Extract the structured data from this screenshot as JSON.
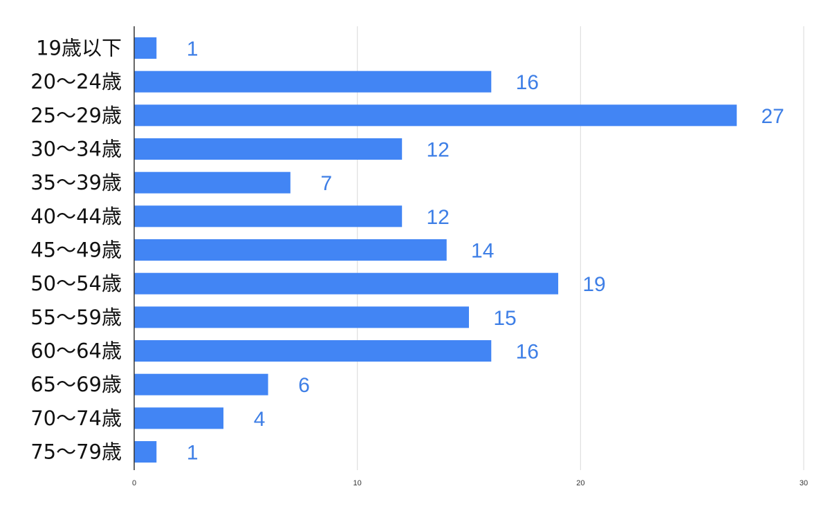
{
  "chart_data": {
    "type": "bar",
    "orientation": "horizontal",
    "categories": [
      "19歳以下",
      "20〜24歳",
      "25〜29歳",
      "30〜34歳",
      "35〜39歳",
      "40〜44歳",
      "45〜49歳",
      "50〜54歳",
      "55〜59歳",
      "60〜64歳",
      "65〜69歳",
      "70〜74歳",
      "75〜79歳"
    ],
    "values": [
      1,
      16,
      27,
      12,
      7,
      12,
      14,
      19,
      15,
      16,
      6,
      4,
      1
    ],
    "xlim": [
      0,
      30
    ],
    "xticks": [
      "0",
      "10",
      "20",
      "30"
    ],
    "title": "",
    "xlabel": "",
    "ylabel": "",
    "grid": "vertical",
    "legend": "none",
    "data_labels": true,
    "colors": {
      "bar": "#4285F4",
      "data_label": "#3D7EE6",
      "gridline": "#d9d9d9",
      "axis": "#333333"
    }
  }
}
